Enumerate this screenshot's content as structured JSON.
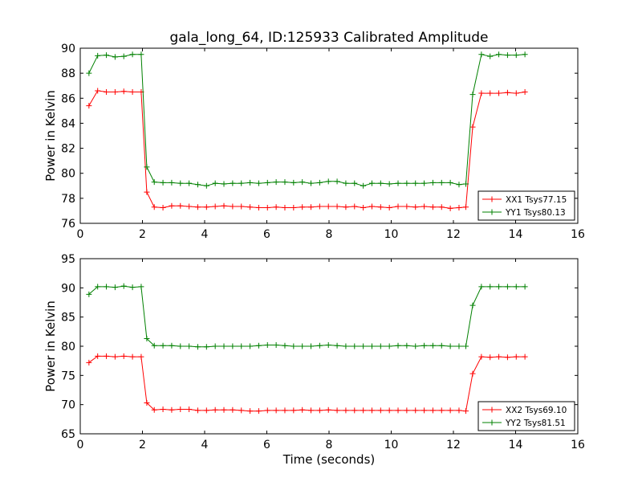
{
  "figure": {
    "title": "gala_long_64, ID:125933 Calibrated Amplitude",
    "xlabel": "Time (seconds)"
  },
  "chart_data": [
    {
      "type": "line",
      "title": "gala_long_64, ID:125933 Calibrated Amplitude",
      "xlabel": "",
      "ylabel": "Power in Kelvin",
      "xlim": [
        0,
        16
      ],
      "ylim": [
        76,
        90
      ],
      "xticks": [
        0,
        2,
        4,
        6,
        8,
        10,
        12,
        14,
        16
      ],
      "yticks": [
        76,
        78,
        80,
        82,
        84,
        86,
        88,
        90
      ],
      "grid": false,
      "legend": "lower-right",
      "x": [
        0.28,
        0.56,
        0.84,
        1.12,
        1.4,
        1.68,
        1.96,
        2.14,
        2.38,
        2.66,
        2.94,
        3.22,
        3.5,
        3.78,
        4.06,
        4.34,
        4.62,
        4.9,
        5.18,
        5.46,
        5.74,
        6.02,
        6.3,
        6.58,
        6.86,
        7.14,
        7.42,
        7.7,
        7.98,
        8.26,
        8.54,
        8.82,
        9.1,
        9.38,
        9.66,
        9.94,
        10.22,
        10.5,
        10.78,
        11.06,
        11.34,
        11.62,
        11.9,
        12.18,
        12.4,
        12.62,
        12.9,
        13.18,
        13.46,
        13.74,
        14.02,
        14.3
      ],
      "series": [
        {
          "name": "XX1 Tsys77.15",
          "color": "#ff0000",
          "values": [
            85.4,
            86.6,
            86.5,
            86.5,
            86.55,
            86.5,
            86.5,
            78.5,
            77.3,
            77.25,
            77.4,
            77.4,
            77.35,
            77.3,
            77.3,
            77.35,
            77.4,
            77.35,
            77.35,
            77.3,
            77.25,
            77.25,
            77.3,
            77.25,
            77.25,
            77.3,
            77.3,
            77.35,
            77.35,
            77.35,
            77.3,
            77.35,
            77.25,
            77.35,
            77.3,
            77.25,
            77.35,
            77.35,
            77.3,
            77.35,
            77.3,
            77.3,
            77.2,
            77.25,
            77.3,
            83.7,
            86.4,
            86.4,
            86.4,
            86.45,
            86.4,
            86.5
          ]
        },
        {
          "name": "YY1 Tsys80.13",
          "color": "#008000",
          "values": [
            88.0,
            89.4,
            89.45,
            89.3,
            89.35,
            89.5,
            89.5,
            80.5,
            79.3,
            79.25,
            79.25,
            79.2,
            79.2,
            79.1,
            79.0,
            79.2,
            79.15,
            79.2,
            79.2,
            79.25,
            79.2,
            79.25,
            79.3,
            79.3,
            79.25,
            79.3,
            79.2,
            79.25,
            79.35,
            79.35,
            79.2,
            79.2,
            79.0,
            79.2,
            79.2,
            79.15,
            79.2,
            79.2,
            79.2,
            79.2,
            79.25,
            79.25,
            79.25,
            79.1,
            79.15,
            86.3,
            89.5,
            89.35,
            89.5,
            89.45,
            89.45,
            89.5
          ]
        }
      ]
    },
    {
      "type": "line",
      "title": "",
      "xlabel": "Time (seconds)",
      "ylabel": "Power in Kelvin",
      "xlim": [
        0,
        16
      ],
      "ylim": [
        65,
        95
      ],
      "xticks": [
        0,
        2,
        4,
        6,
        8,
        10,
        12,
        14,
        16
      ],
      "yticks": [
        65,
        70,
        75,
        80,
        85,
        90,
        95
      ],
      "grid": false,
      "legend": "lower-right",
      "x": [
        0.28,
        0.56,
        0.84,
        1.12,
        1.4,
        1.68,
        1.96,
        2.14,
        2.38,
        2.66,
        2.94,
        3.22,
        3.5,
        3.78,
        4.06,
        4.34,
        4.62,
        4.9,
        5.18,
        5.46,
        5.74,
        6.02,
        6.3,
        6.58,
        6.86,
        7.14,
        7.42,
        7.7,
        7.98,
        8.26,
        8.54,
        8.82,
        9.1,
        9.38,
        9.66,
        9.94,
        10.22,
        10.5,
        10.78,
        11.06,
        11.34,
        11.62,
        11.9,
        12.18,
        12.4,
        12.62,
        12.9,
        13.18,
        13.46,
        13.74,
        14.02,
        14.3
      ],
      "series": [
        {
          "name": "XX2 Tsys69.10",
          "color": "#ff0000",
          "values": [
            77.2,
            78.3,
            78.3,
            78.2,
            78.3,
            78.2,
            78.2,
            70.3,
            69.1,
            69.2,
            69.1,
            69.2,
            69.2,
            69.0,
            69.0,
            69.1,
            69.1,
            69.1,
            69.0,
            68.9,
            68.9,
            69.0,
            69.0,
            69.0,
            69.0,
            69.1,
            69.0,
            69.0,
            69.1,
            69.0,
            69.0,
            69.0,
            69.0,
            69.0,
            69.0,
            69.0,
            69.0,
            69.0,
            69.0,
            69.0,
            69.0,
            69.0,
            69.0,
            69.0,
            68.9,
            75.3,
            78.2,
            78.1,
            78.2,
            78.1,
            78.2,
            78.2
          ]
        },
        {
          "name": "YY2 Tsys81.51",
          "color": "#008000",
          "values": [
            88.9,
            90.2,
            90.2,
            90.1,
            90.3,
            90.1,
            90.2,
            81.3,
            80.1,
            80.1,
            80.1,
            80.0,
            80.0,
            79.9,
            79.9,
            80.0,
            80.0,
            80.0,
            80.0,
            80.0,
            80.1,
            80.2,
            80.2,
            80.1,
            80.0,
            80.0,
            80.0,
            80.1,
            80.2,
            80.1,
            80.0,
            80.0,
            80.0,
            80.0,
            80.0,
            80.0,
            80.1,
            80.1,
            80.0,
            80.1,
            80.1,
            80.1,
            80.0,
            80.0,
            80.0,
            87.0,
            90.2,
            90.2,
            90.2,
            90.2,
            90.2,
            90.2
          ]
        }
      ]
    }
  ]
}
